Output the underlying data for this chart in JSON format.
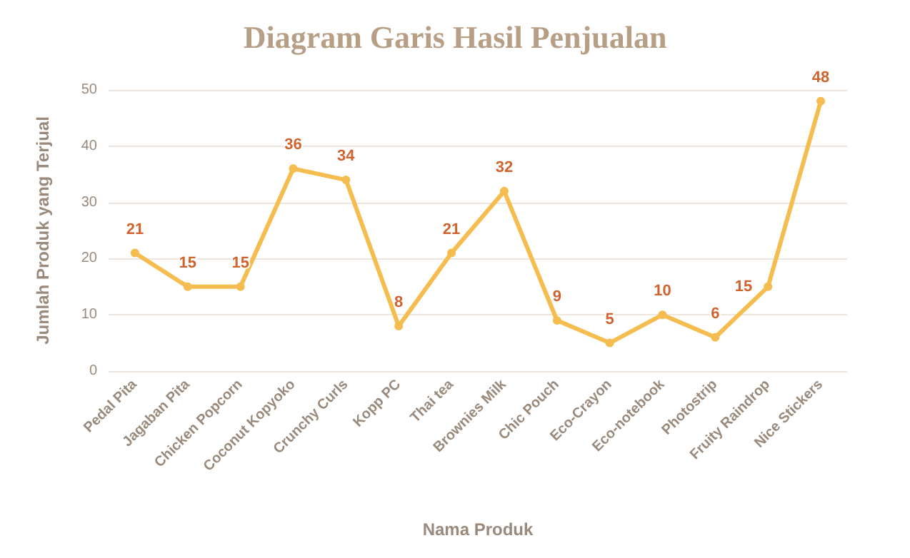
{
  "chart_data": {
    "type": "line",
    "title": "Diagram Garis Hasil Penjualan",
    "xlabel": "Nama Produk",
    "ylabel": "Jumlah Produk yang Terjual",
    "categories": [
      "Pedal Pita",
      "Jagaban Pita",
      "Chicken Popcorn",
      "Coconut Kopyoko",
      "Crunchy Curls",
      "Kopp PC",
      "Thai tea",
      "Brownies Milk",
      "Chic Pouch",
      "Eco-Crayon",
      "Eco-notebook",
      "Photostrip",
      "Fruity Raindrop",
      "Nice Stickers"
    ],
    "series": [
      {
        "color": "#f5bd4f",
        "values": [
          21,
          15,
          15,
          36,
          34,
          8,
          21,
          32,
          9,
          5,
          10,
          6,
          15,
          48
        ]
      }
    ],
    "ylim": [
      0,
      50
    ],
    "yticks": [
      0,
      10,
      20,
      30,
      40,
      50
    ],
    "grid": "y",
    "data_labels": true,
    "marker": "circle",
    "line_style": "solid"
  }
}
